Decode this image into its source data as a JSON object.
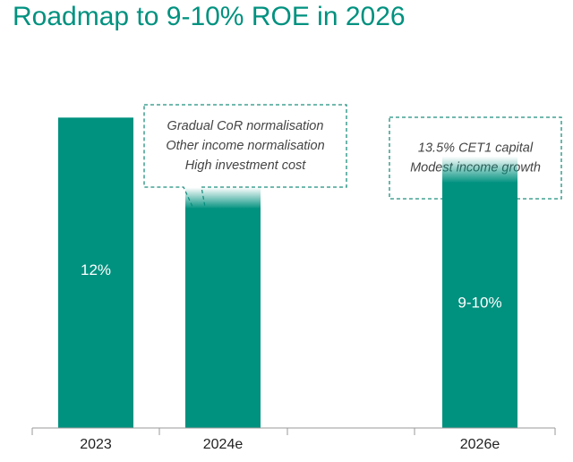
{
  "chart_data": {
    "type": "bar",
    "title": "Roadmap to 9-10% ROE in 2026",
    "categories": [
      "2023",
      "2024e",
      "",
      "2026e"
    ],
    "series": [
      {
        "values": [
          12,
          8.5,
          null,
          9.5
        ],
        "range_upper": [
          null,
          9.3,
          null,
          10.5
        ],
        "data_labels": [
          "12%",
          "",
          "",
          "9-10%"
        ]
      }
    ],
    "ylim": [
      0,
      13.5
    ],
    "grid": false,
    "legend": "none",
    "annotations": [
      {
        "category": "2024e",
        "lines": [
          "Gradual CoR normalisation",
          "Other income normalisation",
          "High investment cost"
        ]
      },
      {
        "category": "2026e",
        "lines": [
          "13.5% CET1 capital",
          "Modest income growth"
        ]
      }
    ]
  },
  "colors": {
    "bar": "#00917f",
    "title": "#00917f",
    "callout_border": "#1f8f7e",
    "axis": "#9a9a9a"
  }
}
